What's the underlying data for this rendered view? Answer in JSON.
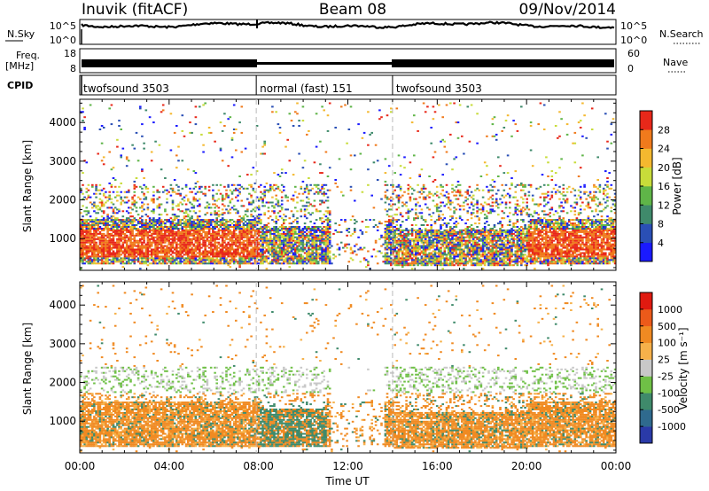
{
  "header": {
    "title_left": "Inuvik (fitACF)",
    "title_center": "Beam 08",
    "title_right": "09/Nov/2014"
  },
  "top_panels": {
    "noise": {
      "left_label": "N.Sky",
      "right_label": "N.Search",
      "left_ticks": [
        "10^5",
        "10^0"
      ],
      "right_ticks": [
        "10^5",
        "10^0"
      ]
    },
    "freq": {
      "left_label_1": "Freq.",
      "left_label_2": "[MHz]",
      "right_label": "Nave",
      "left_ticks": [
        "18",
        "8"
      ],
      "right_ticks": [
        "60",
        "0"
      ]
    },
    "cpid": {
      "label": "CPID",
      "segments": [
        {
          "label": "twofsound 3503",
          "start_h": 0,
          "end_h": 7.9
        },
        {
          "label": "normal (fast) 151",
          "start_h": 7.9,
          "end_h": 14
        },
        {
          "label": "twofsound 3503",
          "start_h": 14,
          "end_h": 24
        }
      ]
    }
  },
  "chart_data": [
    {
      "type": "heatmap",
      "name": "power",
      "ylabel": "Slant Range [km]",
      "ylim": [
        180,
        4600
      ],
      "yticks": [
        1000,
        2000,
        3000,
        4000
      ],
      "xlim": [
        0,
        24
      ],
      "colorbar": {
        "label": "Power [dB]",
        "levels": [
          0,
          4,
          8,
          12,
          16,
          20,
          24,
          28,
          32
        ],
        "tick_labels": [
          "4",
          "8",
          "12",
          "16",
          "20",
          "24",
          "28"
        ],
        "colors": [
          "#1a1aff",
          "#2a4fb5",
          "#3f8a6b",
          "#5fb548",
          "#c8dc3a",
          "#f4b82f",
          "#f07a1c",
          "#e8281a"
        ]
      }
    },
    {
      "type": "heatmap",
      "name": "velocity",
      "ylabel": "Slant Range [km]",
      "ylim": [
        180,
        4600
      ],
      "yticks": [
        1000,
        2000,
        3000,
        4000
      ],
      "xlim": [
        0,
        24
      ],
      "xlabel": "Time UT",
      "xtick_labels": [
        "00:00",
        "04:00",
        "08:00",
        "12:00",
        "16:00",
        "20:00",
        "00:00"
      ],
      "colorbar": {
        "label": "Velocity [m s⁻¹]",
        "tick_labels": [
          "1000",
          "500",
          "100",
          "25",
          "-25",
          "-100",
          "-500",
          "-1000"
        ],
        "colors": [
          "#2a3aa8",
          "#2f6a8e",
          "#3f8a6b",
          "#6fc046",
          "#c8c8c8",
          "#f6b14a",
          "#f08a22",
          "#ec5a1a",
          "#e01a10"
        ]
      }
    }
  ]
}
